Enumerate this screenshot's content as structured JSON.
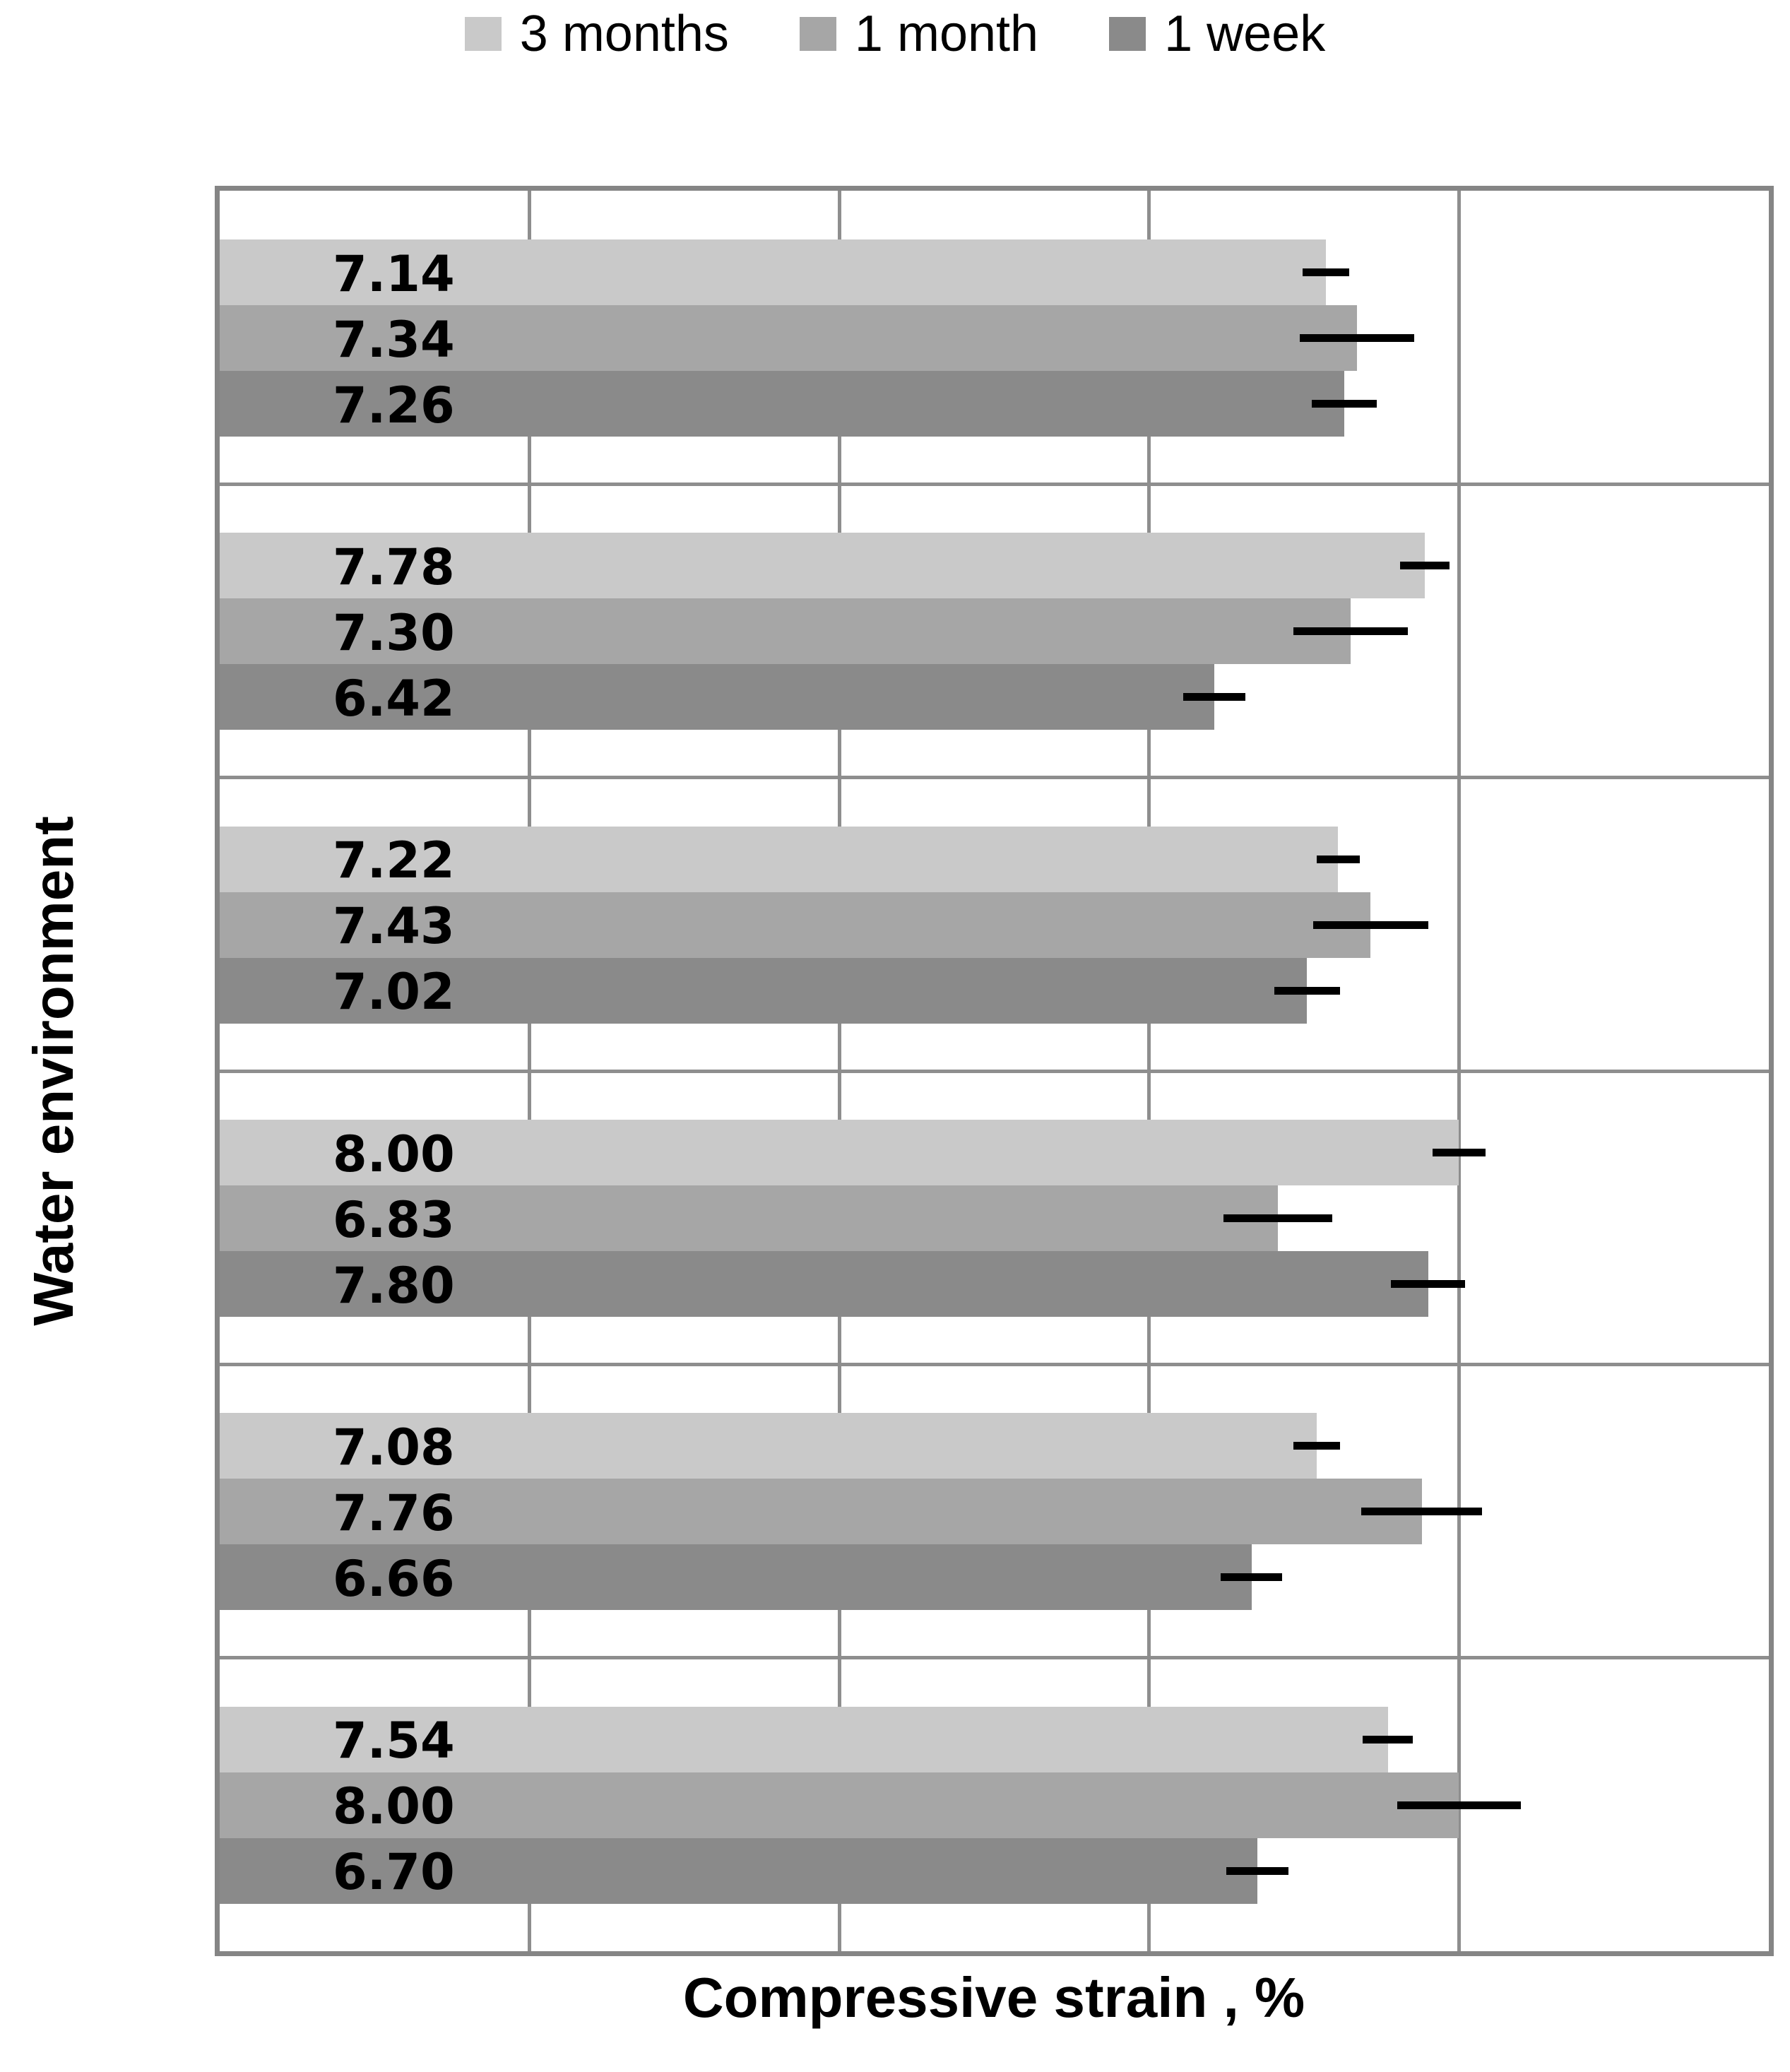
{
  "legend": {
    "items": [
      {
        "label": "3 months",
        "color": "#C9C9C9"
      },
      {
        "label": "1 month",
        "color": "#A6A6A6"
      },
      {
        "label": "1 week",
        "color": "#8A8A8A"
      }
    ]
  },
  "chart_data": {
    "type": "bar",
    "orientation": "horizontal",
    "title": "",
    "xlabel": "Compressive strain , %",
    "ylabel": "Water environment",
    "xlim": [
      0,
      10
    ],
    "x_gridlines": [
      2,
      4,
      6,
      8,
      10
    ],
    "grid": true,
    "x_tick_labels_visible": false,
    "legend_position": "top-center",
    "n_groups": 6,
    "categories": [
      "",
      "",
      "",
      "",
      "",
      ""
    ],
    "group_order_note": "groups listed top to bottom as drawn; within each group bars are ordered 3 months, 1 month, 1 week (top to bottom)",
    "series": [
      {
        "name": "3 months",
        "color": "#C9C9C9",
        "values": [
          7.14,
          7.78,
          7.22,
          8.0,
          7.08,
          7.54
        ],
        "value_labels": [
          "7.14",
          "7.78",
          "7.22",
          "8.00",
          "7.08",
          "7.54"
        ],
        "errors": [
          0.15,
          0.16,
          0.14,
          0.17,
          0.15,
          0.16
        ]
      },
      {
        "name": "1 month",
        "color": "#A6A6A6",
        "values": [
          7.34,
          7.3,
          7.43,
          6.83,
          7.76,
          8.0
        ],
        "value_labels": [
          "7.34",
          "7.30",
          "7.43",
          "6.83",
          "7.76",
          "8.00"
        ],
        "errors": [
          0.37,
          0.37,
          0.37,
          0.35,
          0.39,
          0.4
        ]
      },
      {
        "name": "1 week",
        "color": "#8A8A8A",
        "values": [
          7.26,
          6.42,
          7.02,
          7.8,
          6.66,
          6.7
        ],
        "value_labels": [
          "7.26",
          "6.42",
          "7.02",
          "7.80",
          "6.66",
          "6.70"
        ],
        "errors": [
          0.21,
          0.2,
          0.21,
          0.24,
          0.2,
          0.2
        ]
      }
    ],
    "colors": {
      "grid": "#8E8E8E",
      "plot_border": "#858585",
      "error_bar": "#000000",
      "value_label": "#000000",
      "background": "#FFFFFF"
    }
  }
}
